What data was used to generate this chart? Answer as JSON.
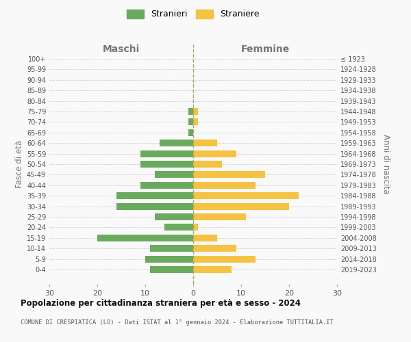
{
  "age_groups": [
    "100+",
    "95-99",
    "90-94",
    "85-89",
    "80-84",
    "75-79",
    "70-74",
    "65-69",
    "60-64",
    "55-59",
    "50-54",
    "45-49",
    "40-44",
    "35-39",
    "30-34",
    "25-29",
    "20-24",
    "15-19",
    "10-14",
    "5-9",
    "0-4"
  ],
  "birth_years": [
    "≤ 1923",
    "1924-1928",
    "1929-1933",
    "1934-1938",
    "1939-1943",
    "1944-1948",
    "1949-1953",
    "1954-1958",
    "1959-1963",
    "1964-1968",
    "1969-1973",
    "1974-1978",
    "1979-1983",
    "1984-1988",
    "1989-1993",
    "1994-1998",
    "1999-2003",
    "2004-2008",
    "2009-2013",
    "2014-2018",
    "2019-2023"
  ],
  "maschi": [
    0,
    0,
    0,
    0,
    0,
    1,
    1,
    1,
    7,
    11,
    11,
    8,
    11,
    16,
    16,
    8,
    6,
    20,
    9,
    10,
    9
  ],
  "femmine": [
    0,
    0,
    0,
    0,
    0,
    1,
    1,
    0,
    5,
    9,
    6,
    15,
    13,
    22,
    20,
    11,
    1,
    5,
    9,
    13,
    8
  ],
  "maschi_color": "#6aaa5e",
  "femmine_color": "#f5c242",
  "background_color": "#f9f9f9",
  "grid_color": "#cccccc",
  "title": "Popolazione per cittadinanza straniera per età e sesso - 2024",
  "subtitle": "COMUNE DI CRESPIATICA (LO) - Dati ISTAT al 1° gennaio 2024 - Elaborazione TUTTITALIA.IT",
  "xlabel_left": "Maschi",
  "xlabel_right": "Femmine",
  "ylabel_left": "Fasce di età",
  "ylabel_right": "Anni di nascita",
  "legend_maschi": "Stranieri",
  "legend_femmine": "Straniere",
  "xlim": 30,
  "dashed_color": "#aaa855"
}
